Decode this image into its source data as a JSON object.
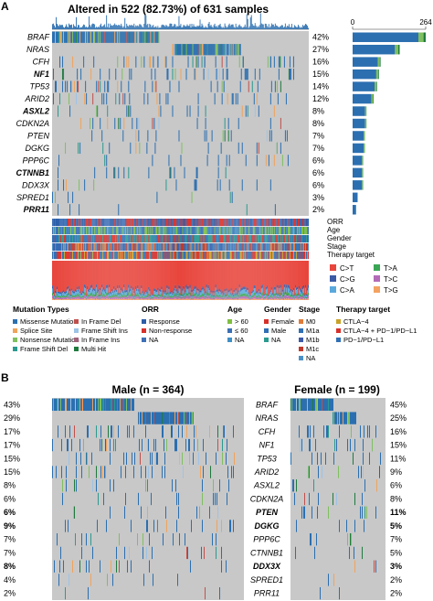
{
  "panel_labels": {
    "a": "A",
    "b": "B"
  },
  "panel_a": {
    "title": "Altered in 522 (82.73%) of 631 samples",
    "bar_axis": {
      "min": "0",
      "max": "264"
    },
    "clinical_tracks": [
      "ORR",
      "Age",
      "Gender",
      "Stage",
      "Therapy target"
    ],
    "snv_legend": [
      "C>T",
      "C>G",
      "C>A",
      "T>A",
      "T>C",
      "T>G"
    ]
  },
  "legend": {
    "mutation_types": {
      "title": "Mutation Types",
      "items": [
        "Missense Mutation",
        "Splice Site",
        "Nonsense Mutation",
        "Frame Shift Del",
        "In Frame Del",
        "Frame Shift Ins",
        "In Frame Ins",
        "Multi Hit"
      ]
    },
    "orr": {
      "title": "ORR",
      "items": [
        "Response",
        "Non-response",
        "NA"
      ]
    },
    "age": {
      "title": "Age",
      "items": [
        "> 60",
        "≤ 60",
        "NA"
      ]
    },
    "gender": {
      "title": "Gender",
      "items": [
        "Female",
        "Male",
        "NA"
      ]
    },
    "stage": {
      "title": "Stage",
      "items": [
        "M0",
        "M1a",
        "M1b",
        "M1c",
        "NA"
      ]
    },
    "therapy": {
      "title": "Therapy target",
      "items": [
        "CTLA−4",
        "CTLA−4 + PD−1/PD−L1",
        "PD−1/PD−L1"
      ]
    }
  },
  "panel_b": {
    "male_title": "Male (n = 364)",
    "female_title": "Female (n = 199)"
  },
  "colors": {
    "missense": "#2b6fb0",
    "splice": "#f0a35b",
    "nonsense": "#7fbf5f",
    "frameshift_del": "#2a9a8f",
    "inframe_del": "#c0504d",
    "frameshift_ins": "#9dc3e6",
    "inframe_ins": "#a0627a",
    "multi_hit": "#1f7a3e",
    "background_cell": "#c8c8c8"
  },
  "chart_data": [
    {
      "type": "bar",
      "title": "Altered in 522 (82.73%) of 631 samples",
      "categories": [
        "BRAF",
        "NRAS",
        "CFH",
        "NF1",
        "TP53",
        "ARID2",
        "ASXL2",
        "CDKN2A",
        "PTEN",
        "DGKG",
        "PPP6C",
        "CTNNB1",
        "DDX3X",
        "SPRED1",
        "PRR11"
      ],
      "bold_genes": [
        "NF1",
        "ASXL2",
        "CTNNB1",
        "PRR11"
      ],
      "percent_labels": [
        "42%",
        "27%",
        "16%",
        "15%",
        "14%",
        "12%",
        "8%",
        "8%",
        "7%",
        "7%",
        "6%",
        "6%",
        "6%",
        "3%",
        "2%"
      ],
      "series": [
        {
          "values": [
            264,
            170,
            101,
            95,
            88,
            76,
            50,
            50,
            44,
            44,
            38,
            38,
            38,
            19,
            13
          ]
        }
      ],
      "xlim": [
        0,
        264
      ]
    },
    {
      "type": "heatmap",
      "title": "Male (n = 364)",
      "categories": [
        "BRAF",
        "NRAS",
        "CFH",
        "NF1",
        "TP53",
        "ARID2",
        "ASXL2",
        "CDKN2A",
        "PTEN",
        "DGKG",
        "PPP6C",
        "CTNNB1",
        "DDX3X",
        "SPRED1",
        "PRR11"
      ],
      "percent_labels": [
        "43%",
        "29%",
        "17%",
        "17%",
        "15%",
        "15%",
        "8%",
        "6%",
        "6%",
        "9%",
        "7%",
        "7%",
        "8%",
        "4%",
        "2%"
      ],
      "bold_rows": [
        "PTEN",
        "DGKG",
        "DDX3X"
      ]
    },
    {
      "type": "heatmap",
      "title": "Female (n = 199)",
      "categories": [
        "BRAF",
        "NRAS",
        "CFH",
        "NF1",
        "TP53",
        "ARID2",
        "ASXL2",
        "CDKN2A",
        "PTEN",
        "DGKG",
        "PPP6C",
        "CTNNB1",
        "DDX3X",
        "SPRED1",
        "PRR11"
      ],
      "percent_labels": [
        "45%",
        "25%",
        "16%",
        "15%",
        "11%",
        "9%",
        "6%",
        "8%",
        "11%",
        "5%",
        "7%",
        "5%",
        "3%",
        "2%",
        "2%"
      ],
      "bold_rows": [
        "PTEN",
        "DGKG",
        "DDX3X"
      ]
    }
  ]
}
